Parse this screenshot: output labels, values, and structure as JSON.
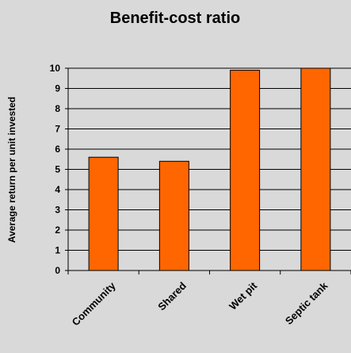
{
  "chart_data": {
    "type": "bar",
    "title": "Benefit-cost ratio",
    "xlabel": "",
    "ylabel": "Average return per unit invested",
    "categories": [
      "Community",
      "Shared",
      "Wet pit",
      "Septic tank"
    ],
    "values": [
      5.6,
      5.4,
      9.9,
      10.0
    ],
    "ylim": [
      0,
      10
    ],
    "yticks": [
      0,
      1,
      2,
      3,
      4,
      5,
      6,
      7,
      8,
      9,
      10
    ],
    "grid": true,
    "legend": "none",
    "colors": {
      "bar_fill": "#ff6600",
      "bar_stroke": "#000000",
      "background": "#d9d9d9",
      "grid": "#000000"
    }
  }
}
